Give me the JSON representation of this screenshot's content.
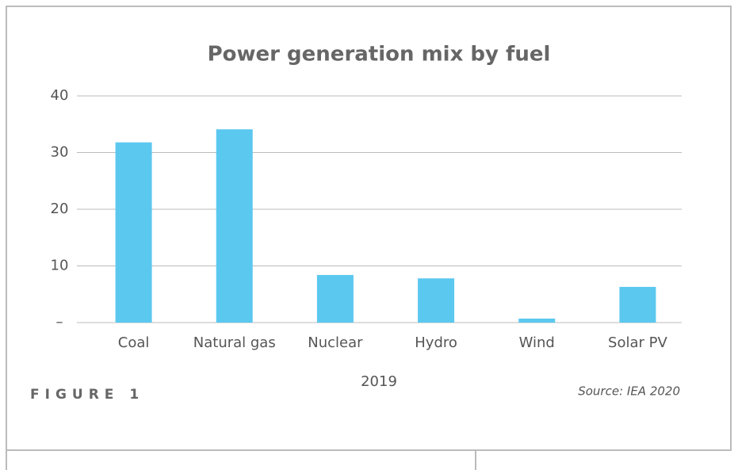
{
  "chart_data": {
    "type": "bar",
    "title": "Power generation mix by fuel",
    "categories": [
      "Coal",
      "Natural gas",
      "Nuclear",
      "Hydro",
      "Wind",
      "Solar PV"
    ],
    "values": [
      31.8,
      34.1,
      8.4,
      7.8,
      0.7,
      6.3
    ],
    "color": "#5bc8f0",
    "ylim": [
      0,
      40
    ],
    "yticks": [
      {
        "value": 0,
        "label": "–"
      },
      10,
      20,
      30,
      40
    ],
    "grid": true,
    "x_label": "2019",
    "source": "Source: IEA 2020",
    "figure_label": "FIGURE 1"
  }
}
